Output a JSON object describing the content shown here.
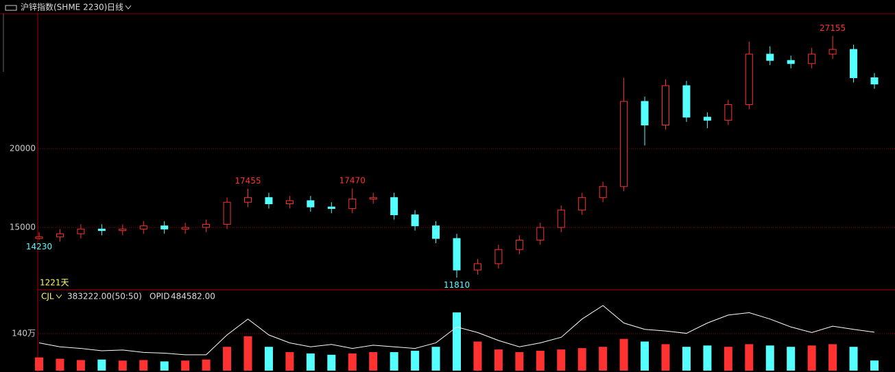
{
  "chart_data": [
    {
      "type": "candlestick",
      "title": "沪锌指数(SHME 2230)",
      "period": "日线",
      "days_label": "1221天",
      "categories": [
        null,
        null,
        null,
        null,
        null,
        null,
        null,
        null,
        null,
        null,
        null,
        null,
        null,
        null,
        null,
        null,
        null,
        null,
        null,
        null,
        null,
        null,
        null,
        null,
        null,
        null,
        null,
        null,
        null,
        null,
        null,
        null,
        null,
        null,
        null,
        null,
        null,
        null,
        null,
        null,
        null
      ],
      "open": [
        14300,
        14400,
        14600,
        14900,
        14800,
        14900,
        15100,
        14900,
        15000,
        15200,
        16600,
        16900,
        16500,
        16700,
        16300,
        16200,
        16800,
        16900,
        15800,
        15100,
        14300,
        12300,
        12700,
        13600,
        14200,
        15000,
        16100,
        16900,
        17600,
        23000,
        21500,
        24000,
        22000,
        21800,
        22800,
        26000,
        25600,
        25400,
        26000,
        26300,
        24500
      ],
      "high": [
        14700,
        14900,
        15200,
        15200,
        15200,
        15400,
        15400,
        15300,
        15500,
        16900,
        17455,
        17200,
        17000,
        17000,
        16600,
        17470,
        17200,
        17200,
        16100,
        15400,
        14600,
        13000,
        13900,
        14500,
        15300,
        16400,
        17200,
        17900,
        24500,
        23300,
        24400,
        24300,
        22300,
        23100,
        26800,
        26500,
        25900,
        26400,
        27155,
        26600,
        24800
      ],
      "low": [
        14230,
        14100,
        14300,
        14500,
        14500,
        14600,
        14600,
        14600,
        14700,
        14900,
        16300,
        16200,
        16200,
        16000,
        15900,
        15900,
        16500,
        15500,
        14800,
        14000,
        11810,
        12000,
        12400,
        13300,
        13900,
        14700,
        15800,
        16600,
        17300,
        20200,
        21200,
        21700,
        21300,
        21500,
        22500,
        25300,
        25100,
        25100,
        25700,
        24200,
        23800
      ],
      "close": [
        14400,
        14600,
        14900,
        14800,
        14900,
        15100,
        14900,
        15000,
        15200,
        16600,
        16900,
        16500,
        16700,
        16300,
        16200,
        16800,
        16900,
        15800,
        15100,
        14300,
        12300,
        12700,
        13600,
        14200,
        15000,
        16100,
        16900,
        17600,
        23000,
        21500,
        24000,
        22000,
        21800,
        22800,
        26000,
        25600,
        25400,
        26000,
        26300,
        24500,
        24100
      ],
      "up_color": "#ff3232",
      "down_color": "#54ffff",
      "ylim": [
        11087,
        28565
      ],
      "yticks": [
        15000,
        20000
      ],
      "grid": true,
      "annotations": [
        {
          "value": 27155,
          "kind": "high"
        },
        {
          "value": 17455,
          "kind": "high"
        },
        {
          "value": 17470,
          "kind": "high"
        },
        {
          "value": 14230,
          "kind": "low"
        },
        {
          "value": 11810,
          "kind": "low"
        }
      ]
    },
    {
      "type": "volume",
      "categories": [
        null,
        null,
        null,
        null,
        null,
        null,
        null,
        null,
        null,
        null,
        null,
        null,
        null,
        null,
        null,
        null,
        null,
        null,
        null,
        null,
        null,
        null,
        null,
        null,
        null,
        null,
        null,
        null,
        null,
        null,
        null,
        null,
        null,
        null,
        null,
        null,
        null,
        null,
        null,
        null,
        null
      ],
      "series": [
        {
          "name": "CJL",
          "value_label": "383222.00(50:50)",
          "values": [
            500000,
            450000,
            400000,
            420000,
            380000,
            400000,
            350000,
            380000,
            420000,
            900000,
            1300000,
            900000,
            700000,
            650000,
            600000,
            650000,
            700000,
            700000,
            750000,
            900000,
            2200000,
            1100000,
            800000,
            700000,
            750000,
            800000,
            850000,
            900000,
            1200000,
            1100000,
            1000000,
            900000,
            950000,
            900000,
            1000000,
            950000,
            900000,
            950000,
            1000000,
            900000,
            383222
          ]
        },
        {
          "name": "OPID",
          "value_label": "484582.00",
          "axis": "y2",
          "color": "#ffffff",
          "values": [
            350000,
            300000,
            280000,
            250000,
            260000,
            230000,
            220000,
            200000,
            200000,
            450000,
            650000,
            450000,
            350000,
            300000,
            330000,
            280000,
            320000,
            300000,
            280000,
            350000,
            550000,
            480000,
            380000,
            300000,
            350000,
            420000,
            650000,
            820000,
            600000,
            520000,
            500000,
            470000,
            600000,
            700000,
            730000,
            650000,
            550000,
            480000,
            560000,
            520000,
            484582
          ]
        }
      ],
      "ylim": [
        0,
        3030000
      ],
      "yticks": [
        {
          "value": 1400000,
          "label": "140万"
        }
      ],
      "y2lim": [
        0,
        1010000
      ],
      "grid": true
    }
  ]
}
